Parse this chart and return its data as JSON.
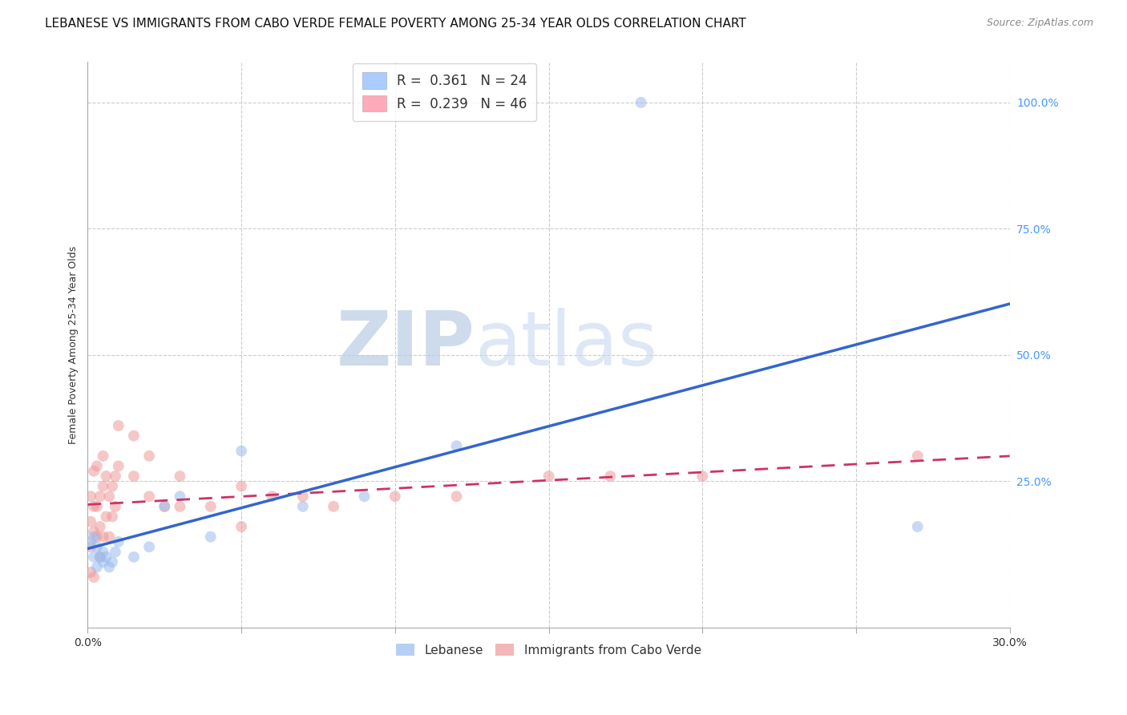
{
  "title": "LEBANESE VS IMMIGRANTS FROM CABO VERDE FEMALE POVERTY AMONG 25-34 YEAR OLDS CORRELATION CHART",
  "source": "Source: ZipAtlas.com",
  "ylabel": "Female Poverty Among 25-34 Year Olds",
  "xlim": [
    0.0,
    0.3
  ],
  "ylim": [
    -0.04,
    1.08
  ],
  "xticks": [
    0.0,
    0.05,
    0.1,
    0.15,
    0.2,
    0.25,
    0.3
  ],
  "xticklabels": [
    "0.0%",
    "",
    "",
    "",
    "",
    "",
    "30.0%"
  ],
  "yticks_right": [
    0.25,
    0.5,
    0.75,
    1.0
  ],
  "ytick_right_labels": [
    "25.0%",
    "50.0%",
    "75.0%",
    "100.0%"
  ],
  "legend_items": [
    {
      "label_r": "R = ",
      "label_r_val": "0.361",
      "label_n": "  N = ",
      "label_n_val": "24",
      "color": "#aaccff"
    },
    {
      "label_r": "R = ",
      "label_r_val": "0.239",
      "label_n": "  N = ",
      "label_n_val": "46",
      "color": "#ffaabb"
    }
  ],
  "watermark_zip": "ZIP",
  "watermark_atlas": "atlas",
  "watermark_color_zip": "#c8d8ef",
  "watermark_color_atlas": "#c8d8ef",
  "blue_color": "#99bbee",
  "pink_color": "#ee9999",
  "blue_line_color": "#3366cc",
  "pink_line_color": "#cc3366",
  "background_color": "#ffffff",
  "lebanese_x": [
    0.001,
    0.002,
    0.002,
    0.003,
    0.003,
    0.004,
    0.005,
    0.005,
    0.006,
    0.007,
    0.008,
    0.009,
    0.01,
    0.015,
    0.02,
    0.025,
    0.03,
    0.04,
    0.05,
    0.07,
    0.09,
    0.12,
    0.18,
    0.27
  ],
  "lebanese_y": [
    0.13,
    0.1,
    0.14,
    0.08,
    0.12,
    0.1,
    0.09,
    0.11,
    0.1,
    0.08,
    0.09,
    0.11,
    0.13,
    0.1,
    0.12,
    0.2,
    0.22,
    0.14,
    0.31,
    0.2,
    0.22,
    0.32,
    1.0,
    0.16
  ],
  "caboverde_x": [
    0.001,
    0.001,
    0.001,
    0.001,
    0.002,
    0.002,
    0.002,
    0.002,
    0.003,
    0.003,
    0.003,
    0.004,
    0.004,
    0.004,
    0.005,
    0.005,
    0.005,
    0.006,
    0.006,
    0.007,
    0.007,
    0.008,
    0.008,
    0.009,
    0.009,
    0.01,
    0.01,
    0.015,
    0.015,
    0.02,
    0.02,
    0.025,
    0.03,
    0.03,
    0.04,
    0.05,
    0.05,
    0.06,
    0.07,
    0.08,
    0.1,
    0.12,
    0.15,
    0.17,
    0.2,
    0.27
  ],
  "caboverde_y": [
    0.17,
    0.12,
    0.22,
    0.07,
    0.27,
    0.15,
    0.2,
    0.06,
    0.14,
    0.28,
    0.2,
    0.22,
    0.16,
    0.1,
    0.3,
    0.24,
    0.14,
    0.18,
    0.26,
    0.22,
    0.14,
    0.24,
    0.18,
    0.26,
    0.2,
    0.36,
    0.28,
    0.34,
    0.26,
    0.22,
    0.3,
    0.2,
    0.26,
    0.2,
    0.2,
    0.24,
    0.16,
    0.22,
    0.22,
    0.2,
    0.22,
    0.22,
    0.26,
    0.26,
    0.26,
    0.3
  ],
  "grid_color": "#cccccc",
  "title_fontsize": 11,
  "axis_fontsize": 10,
  "marker_size": 100
}
